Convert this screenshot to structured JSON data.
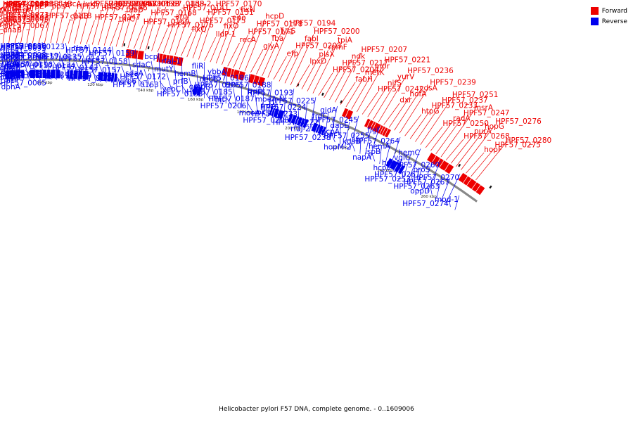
{
  "caption": "Helicobacter pylori F57 DNA, complete genome. - 0..1609006",
  "legend": [
    {
      "label": "Forward",
      "color": "#ee0000"
    },
    {
      "label": "Reverse",
      "color": "#0000ee"
    }
  ],
  "colors": {
    "forward": "#ee0000",
    "reverse": "#0000ee",
    "backbone": "#888888"
  },
  "ticks": [
    "60 kbp",
    "80 kbp",
    "100 kbp",
    "120 kbp",
    "140 kbp",
    "160 kbp",
    "180 kbp",
    "200 kbp",
    "220 kbp",
    "240 kbp",
    "260 kbp"
  ],
  "forward_labels": [
    "dnaB",
    "HPF57_0049",
    "corA",
    "HPF57_0064",
    "HPF57_0067",
    "HPF57_0073",
    "HPF57_0077",
    "rpsT",
    "prfA",
    "horA-frg",
    "horA",
    "HPF57_0093",
    "virB4_3",
    "virB3-1",
    "HPF57_0104",
    "HPF57_0103",
    "HPF57_0102",
    "virB2-1",
    "topA_3",
    "cysK",
    "dnaK",
    "grpE",
    "mcpB",
    "metB",
    "HPF57_0118",
    "ppsA",
    "flaB",
    "hrcA",
    "cpdB",
    "HPF57_0122",
    "luxS",
    "HPF57_0150",
    "HPF57_0147",
    "HPF57_0146",
    "HPF57_0140",
    "HPF57_0138",
    "thrC",
    "fabD",
    "HPF57_0133",
    "aroK",
    "HPF57_0169",
    "HPF57_0168",
    "HPF57_0155",
    "fixP",
    "HPF57_0176",
    "aroF",
    "HPF57_0141",
    "lldP-2",
    "fixQ",
    "HPF57_0175",
    "HPF57_0151",
    "HPF57_0170",
    "lldP-1",
    "fixO",
    "eno",
    "fixN",
    "recA",
    "HPF57_0171",
    "HPF57_0178",
    "hcpD",
    "glyA",
    "fba",
    "lysS",
    "HPF57_0194",
    "efp",
    "HPF57_0203",
    "fabI",
    "HPF57_0200",
    "lpxD",
    "plsX",
    "rpmF",
    "tpiA",
    "HPF57_0204",
    "HPF57_0217",
    "ndk",
    "HPF57_0207",
    "fabH",
    "metK",
    "mpr",
    "HPF57_0221",
    "HPF57_0242",
    "nifS",
    "yurV",
    "HPF57_0236",
    "dxr",
    "hofA",
    "cdsA",
    "HPF57_0239",
    "htpG",
    "HPF57_0233",
    "HPF57_0237",
    "HPF57_0251",
    "HPF57_0250",
    "radA",
    "HPF57_0247",
    "msrA",
    "HPF57_0268",
    "purA",
    "hopG",
    "HPF57_0276",
    "hopF",
    "HPF57_0275",
    "HPF57_0280"
  ],
  "reverse_labels": [
    "dpnA",
    "ddeM",
    "putP",
    "putA",
    "HPF57_0065",
    "ureH",
    "ureG",
    "ureA",
    "ureF",
    "ureE",
    "ureI",
    "ureC",
    "lspA",
    "glmM",
    "HPF57_0094",
    "HPF57_0095",
    "rpsI",
    "rplM",
    "rpoD",
    "HPF57_0110",
    "horB",
    "rplT",
    "rpmI",
    "infC",
    "thrS",
    "topA",
    "HPF57_0098",
    "HPF57_0099",
    "HPF57_0100",
    "HPF57_0116",
    "HPF57_0119",
    "HPF57_0123",
    "HPF57_0124",
    "HPF57_0134",
    "HPF57_0135",
    "tlpA",
    "HPF57_0139",
    "HPF57_0142",
    "HPF57_0143",
    "HPF57_0144",
    "HPF57_0148",
    "HPF57_0157",
    "HPF57_0158",
    "HPF57_0159",
    "virb6",
    "sdaA",
    "sdaC",
    "bcp",
    "HPF57_0163",
    "HPF57_0172",
    "mutY",
    "rfaJ-1",
    "yebC",
    "prfB",
    "hemB",
    "fliR",
    "HPF57_0183",
    "ompR",
    "neuB",
    "ybbA",
    "lnt",
    "HPF57_0185",
    "HPF57_0205",
    "HPF57_0186",
    "HPF57_0206",
    "HPF57_0187",
    "frdB",
    "HPF57_0188",
    "moeA-C",
    "frdA",
    "moeA-N",
    "HPF57_0193",
    "HPF57_0208",
    "HPF57_0223",
    "HPF57_0224",
    "HPF57_0225",
    "rfaJ-2",
    "HPF57_0222",
    "frdC",
    "gidA",
    "HPF57_0238",
    "hcpA",
    "dapE",
    "HPF57_0245",
    "hopM-2",
    "kdsB",
    "HPF57_0255",
    "flgI",
    "napA",
    "ispB",
    "hemA",
    "HPF57_0264",
    "hcpE",
    "hopA",
    "vgiC",
    "hemC",
    "HPF57_0253",
    "HPF57_0261",
    "proS",
    "HPF57_0260",
    "oppD",
    "HPF57_0263",
    "HPF57_0267",
    "HPF57_0270",
    "HPF57_0274",
    "mod-1"
  ]
}
